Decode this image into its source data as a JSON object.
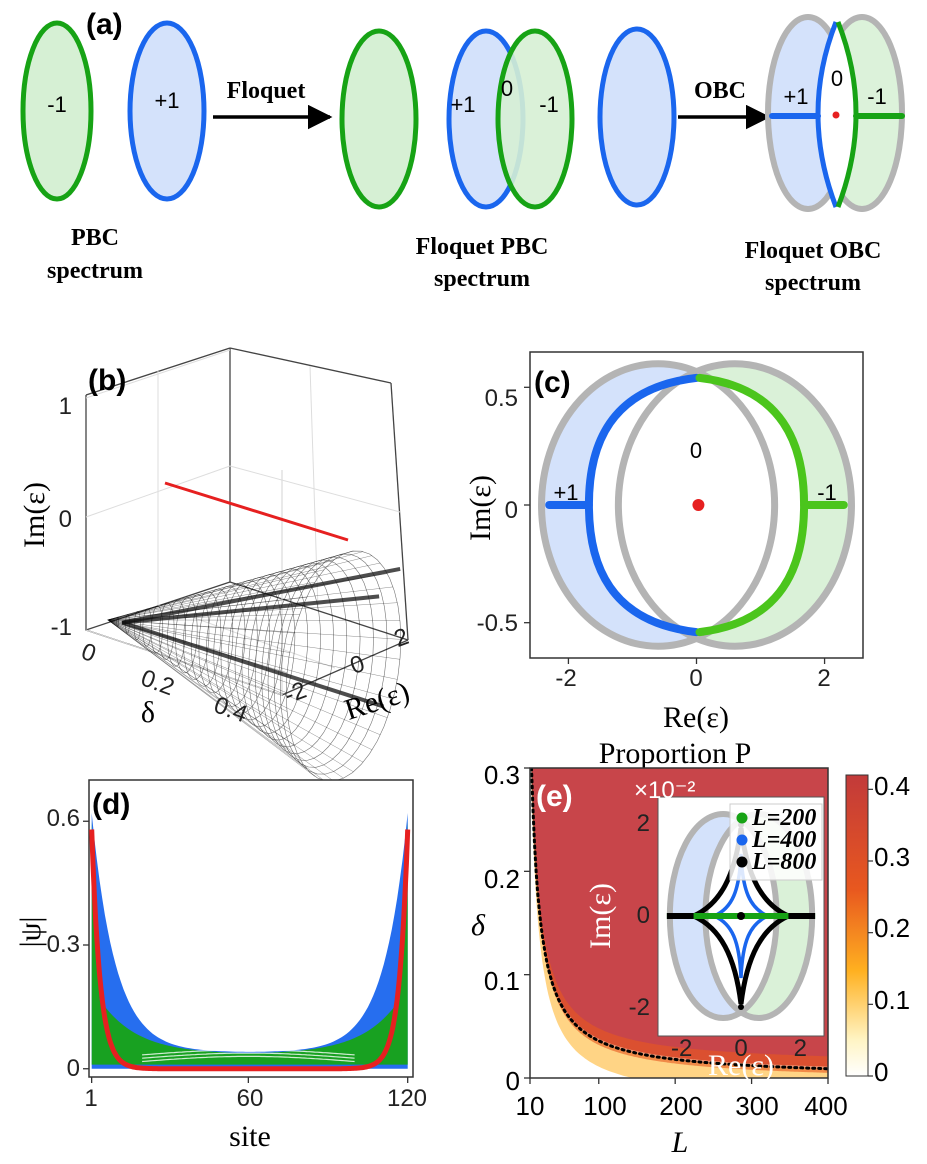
{
  "panel_a": {
    "label": "(a)",
    "pbc_winding": {
      "left": "-1",
      "right": "+1"
    },
    "floquet_arrow": "Floquet",
    "obc_arrow": "OBC",
    "caption_pbc": [
      "PBC",
      "spectrum"
    ],
    "fpbc_winding": {
      "left": "+1",
      "center": "0",
      "right": "-1"
    },
    "caption_fpbc": [
      "Floquet PBC",
      "spectrum"
    ],
    "fobc_winding": {
      "left": "+1",
      "center": "0",
      "right": "-1"
    },
    "caption_fobc": [
      "Floquet OBC",
      "spectrum"
    ],
    "colors": {
      "green": "#17a315",
      "blue": "#1a66ee",
      "green_fill": "#d6f0d4",
      "blue_fill": "#d4e2fb",
      "gray": "#b4b4b4",
      "red": "#e62020"
    }
  },
  "chart_data": [
    {
      "panel": "(b)",
      "type": "scatter",
      "x_label": "Re(ε)",
      "y_label": "Im(ε)",
      "depth_label": "δ",
      "x_ticks": [
        "-2",
        "0",
        "2"
      ],
      "y_ticks": [
        "-1",
        "0",
        "1"
      ],
      "depth_ticks": [
        "0",
        "0.2",
        "0.4"
      ],
      "delta_range": [
        0,
        0.5
      ],
      "re_range": [
        -2.4,
        2.4
      ],
      "im_range": [
        -1,
        1
      ],
      "series": [
        {
          "color": "#000000"
        },
        {
          "color": "#e62020"
        }
      ]
    },
    {
      "panel": "(c)",
      "type": "line",
      "x_label": "Re(ε)",
      "y_label": "Im(ε)",
      "x_ticks": [
        "-2",
        "0",
        "2"
      ],
      "y_ticks": [
        "0.5",
        "0",
        "-0.5"
      ],
      "xlim": [
        -2.6,
        2.6
      ],
      "ylim": [
        -0.65,
        0.65
      ],
      "region_labels": [
        "+1",
        "0",
        "-1"
      ],
      "pbc_ellipses": [
        {
          "center": [
            -0.6,
            0
          ],
          "a": 1.82,
          "b": 0.6
        },
        {
          "center": [
            0.6,
            0
          ],
          "a": 1.82,
          "b": 0.6
        }
      ],
      "obc_left_arc": {
        "color": "#1a66ee",
        "top": [
          0,
          0.54
        ],
        "leftmost": [
          -1.68,
          0
        ]
      },
      "obc_right_arc": {
        "color": "#4bc51c",
        "top": [
          0.05,
          0.54
        ],
        "rightmost": [
          1.68,
          0
        ]
      },
      "obc_tails": [
        {
          "from": -2.3,
          "to": -1.68,
          "y": 0,
          "color": "#1a66ee"
        },
        {
          "from": 1.68,
          "to": 2.3,
          "y": 0,
          "color": "#4bc51c"
        }
      ],
      "zero_mode": {
        "x": 0.03,
        "y": 0.0,
        "color": "#e62020"
      }
    },
    {
      "panel": "(d)",
      "type": "line",
      "x_label": "site",
      "y_label": "|ψ|",
      "x_ticks": [
        "1",
        "60",
        "120"
      ],
      "y_ticks": [
        "0",
        "0.3",
        "0.6"
      ],
      "xlim": [
        0,
        122
      ],
      "ylim": [
        -0.02,
        0.7
      ],
      "series": [
        {
          "color": "#1a66ee",
          "edge_peak": 0.62,
          "bulk_min": 0.04
        },
        {
          "color": "#17a315",
          "edge_peak": 0.62,
          "bulk_min": 0.01
        },
        {
          "color": "#e62020",
          "edge_peak": 0.58,
          "bulk_min": 0.0
        }
      ]
    },
    {
      "panel": "(e)",
      "type": "heatmap",
      "title": "Proportion P",
      "x_label": "L",
      "y_label": "δ",
      "x_ticks": [
        "10",
        "100",
        "200",
        "300",
        "400"
      ],
      "y_ticks": [
        "0",
        "0.1",
        "0.2",
        "0.3"
      ],
      "xlim": [
        10,
        400
      ],
      "ylim": [
        0,
        0.3
      ],
      "colorbar": {
        "min": 0,
        "max": 0.42,
        "ticks": [
          "0",
          "0.1",
          "0.2",
          "0.3",
          "0.4"
        ]
      },
      "boundary_curve": {
        "style": "dotted",
        "color": "#000000",
        "formula": "delta ≈ 3.6/L"
      },
      "inset": {
        "multiplier": "×10⁻²",
        "x_label": "Re(ε)",
        "y_label": "Im(ε)",
        "x_ticks": [
          "-2",
          "0",
          "2"
        ],
        "y_ticks": [
          "2",
          "0",
          "-2"
        ],
        "legend": [
          {
            "name": "L=200",
            "color": "#17a315"
          },
          {
            "name": "L=400",
            "color": "#1a66ee"
          },
          {
            "name": "L=800",
            "color": "#000000"
          }
        ]
      }
    }
  ]
}
